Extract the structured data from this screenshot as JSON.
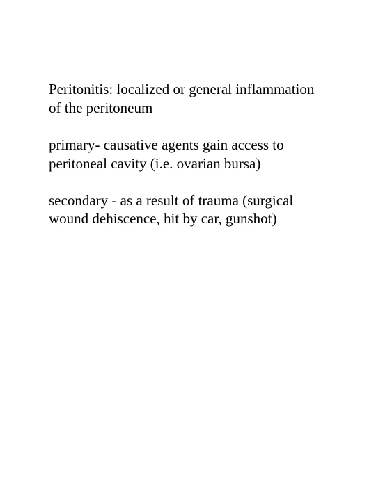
{
  "doc": {
    "background_color": "#ffffff",
    "text_color": "#000000",
    "font_family": "Times New Roman",
    "font_size_pt": 16,
    "paragraphs": [
      "Peritonitis:\nlocalized or general inflammation of the peritoneum",
      "primary- causative agents gain access to peritoneal cavity (i.e. ovarian bursa)",
      "secondary - as a result of trauma (surgical wound dehiscence, hit by car, gunshot)"
    ]
  }
}
